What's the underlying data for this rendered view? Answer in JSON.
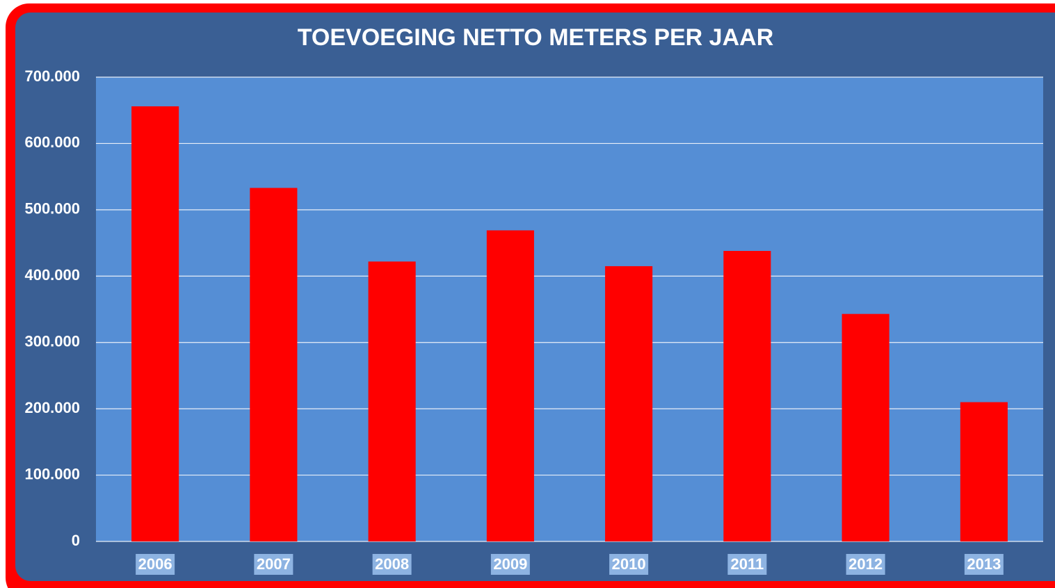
{
  "chart_data": {
    "type": "bar",
    "title": "TOEVOEGING NETTO METERS PER JAAR",
    "categories": [
      "2006",
      "2007",
      "2008",
      "2009",
      "2010",
      "2011",
      "2012",
      "2013"
    ],
    "values": [
      656000,
      533000,
      422000,
      469000,
      415000,
      438000,
      343000,
      210000
    ],
    "color": "#ff0000",
    "ylim": [
      0,
      700000
    ],
    "yticks": [
      0,
      {
        "value": 100000,
        "label": "100.000"
      },
      {
        "value": 200000,
        "label": "200.000"
      },
      {
        "value": 300000,
        "label": "300.000"
      },
      {
        "value": 400000,
        "label": "400.000"
      },
      {
        "value": 500000,
        "label": "500.000"
      },
      {
        "value": 600000,
        "label": "600.000"
      },
      {
        "value": 700000,
        "label": "700.000"
      }
    ],
    "grid": true
  }
}
